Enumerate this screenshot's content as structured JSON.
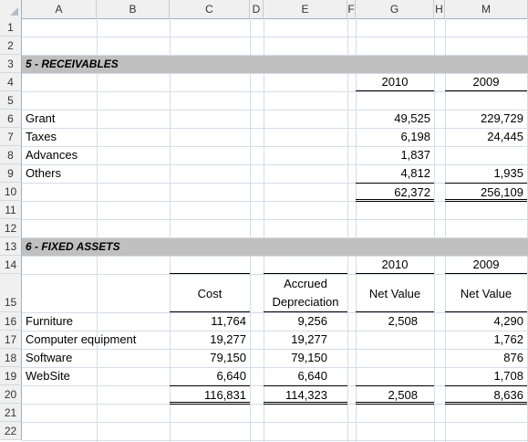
{
  "columns": [
    "A",
    "B",
    "C",
    "D",
    "E",
    "F",
    "G",
    "H",
    "M"
  ],
  "rows": [
    "1",
    "2",
    "3",
    "4",
    "5",
    "6",
    "7",
    "8",
    "9",
    "10",
    "11",
    "12",
    "13",
    "14",
    "15",
    "16",
    "17",
    "18",
    "19",
    "20",
    "21",
    "22"
  ],
  "receivables": {
    "title": "5 - RECEIVABLES",
    "year_current": "2010",
    "year_prior": "2009",
    "items": [
      {
        "label": "Grant",
        "v2010": "49,525",
        "v2009": "229,729"
      },
      {
        "label": "Taxes",
        "v2010": "6,198",
        "v2009": "24,445"
      },
      {
        "label": "Advances",
        "v2010": "1,837",
        "v2009": ""
      },
      {
        "label": "Others",
        "v2010": "4,812",
        "v2009": "1,935"
      }
    ],
    "total": {
      "v2010": "62,372",
      "v2009": "256,109"
    }
  },
  "fixed_assets": {
    "title": "6 - FIXED ASSETS",
    "year_current": "2010",
    "year_prior": "2009",
    "headers": {
      "cost": "Cost",
      "accrued_1": "Accrued",
      "accrued_2": "Depreciation",
      "net_value_current": "Net Value",
      "net_value_prior": "Net Value"
    },
    "items": [
      {
        "label": "Furniture",
        "cost": "11,764",
        "accrued": "9,256",
        "net2010": "2,508",
        "net2009": "4,290"
      },
      {
        "label": "Computer equipment",
        "cost": "19,277",
        "accrued": "19,277",
        "net2010": "",
        "net2009": "1,762"
      },
      {
        "label": "Software",
        "cost": "79,150",
        "accrued": "79,150",
        "net2010": "",
        "net2009": "876"
      },
      {
        "label": "WebSite",
        "cost": "6,640",
        "accrued": "6,640",
        "net2010": "",
        "net2009": "1,708"
      }
    ],
    "total": {
      "cost": "116,831",
      "accrued": "114,323",
      "net2010": "2,508",
      "net2009": "8,636"
    }
  }
}
